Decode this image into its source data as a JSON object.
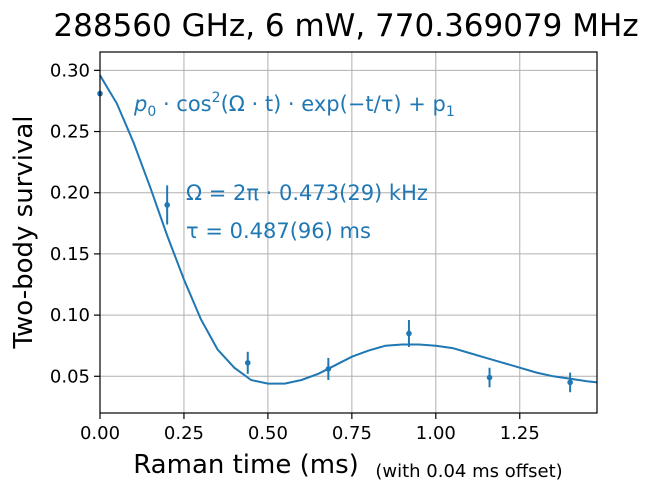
{
  "chart_data": {
    "type": "scatter",
    "title": "288560 GHz, 6 mW, 770.369079 MHz",
    "xlabel": "Raman time (ms)",
    "xlabel_suffix": "(with 0.04 ms offset)",
    "ylabel": "Two-body survival",
    "xlim": [
      0.0,
      1.48
    ],
    "ylim": [
      0.02,
      0.315
    ],
    "grid": true,
    "x_ticks": [
      0.0,
      0.25,
      0.5,
      0.75,
      1.0,
      1.25
    ],
    "x_tick_labels": [
      "0.00",
      "0.25",
      "0.50",
      "0.75",
      "1.00",
      "1.25"
    ],
    "y_ticks": [
      0.05,
      0.1,
      0.15,
      0.2,
      0.25,
      0.3
    ],
    "y_tick_labels": [
      "0.05",
      "0.10",
      "0.15",
      "0.20",
      "0.25",
      "0.30"
    ],
    "color": "#1f77b4",
    "points": [
      {
        "x": 0.0,
        "y": 0.281,
        "err": 0.0
      },
      {
        "x": 0.2,
        "y": 0.19,
        "err": 0.016
      },
      {
        "x": 0.44,
        "y": 0.061,
        "err": 0.009
      },
      {
        "x": 0.68,
        "y": 0.056,
        "err": 0.009
      },
      {
        "x": 0.92,
        "y": 0.085,
        "err": 0.011
      },
      {
        "x": 1.16,
        "y": 0.049,
        "err": 0.008
      },
      {
        "x": 1.4,
        "y": 0.045,
        "err": 0.008
      }
    ],
    "fit": {
      "formula": "p0·cos²(Ω·t)·exp(−t/τ)+p1",
      "x": [
        0.0,
        0.05,
        0.1,
        0.15,
        0.2,
        0.25,
        0.3,
        0.35,
        0.4,
        0.45,
        0.5,
        0.55,
        0.6,
        0.65,
        0.7,
        0.75,
        0.8,
        0.85,
        0.9,
        0.95,
        1.0,
        1.05,
        1.1,
        1.15,
        1.2,
        1.25,
        1.3,
        1.35,
        1.4,
        1.45,
        1.48
      ],
      "y": [
        0.296,
        0.273,
        0.241,
        0.204,
        0.165,
        0.129,
        0.097,
        0.072,
        0.057,
        0.047,
        0.044,
        0.044,
        0.047,
        0.052,
        0.059,
        0.066,
        0.071,
        0.075,
        0.076,
        0.076,
        0.075,
        0.073,
        0.069,
        0.065,
        0.061,
        0.057,
        0.053,
        0.05,
        0.048,
        0.046,
        0.045
      ]
    },
    "annotations": {
      "model_prefix": "p",
      "model_sub0": "0",
      "model_mid": " · cos",
      "model_sup": "2",
      "model_rest": "(Ω · t) · exp(−t/τ) + p",
      "model_sub1": "1",
      "omega": "Ω = 2π · 0.473(29) kHz",
      "tau": "τ = 0.487(96) ms"
    }
  }
}
